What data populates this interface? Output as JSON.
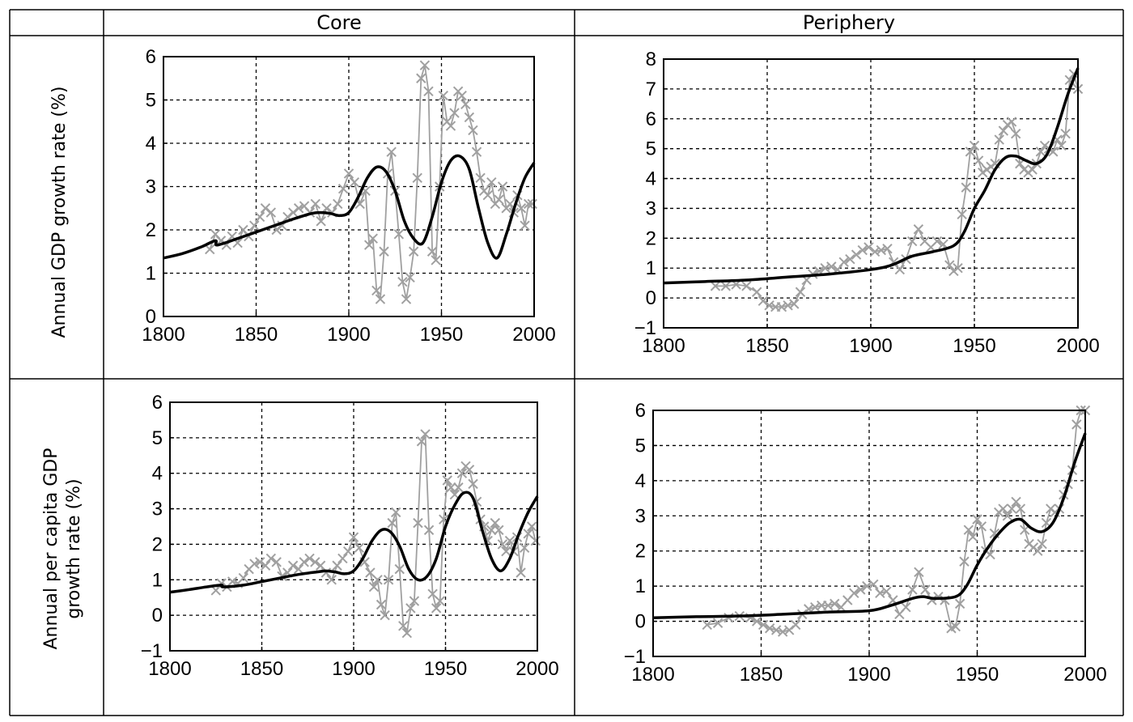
{
  "table": {
    "col_headers": [
      "Core",
      "Periphery"
    ],
    "row_labels": [
      {
        "lines": [
          "Annual GDP growth rate (%)"
        ]
      },
      {
        "lines": [
          "Annual per capita GDP",
          "growth rate (%)"
        ]
      }
    ]
  },
  "colors": {
    "trend": "#000000",
    "observed": "#a0a0a0",
    "grid": "#000000"
  },
  "chart_data": [
    {
      "type": "line",
      "panel": "Core / Annual GDP growth rate",
      "xlim": [
        1800,
        2000
      ],
      "ylim": [
        0,
        6
      ],
      "xticks": [
        1800,
        1850,
        1900,
        1950,
        2000
      ],
      "yticks": [
        0,
        1,
        2,
        3,
        4,
        5,
        6
      ],
      "grid": true,
      "series": [
        {
          "style": "smoothed",
          "x": [
            1800,
            1810,
            1820,
            1828,
            1829,
            1840,
            1850,
            1860,
            1870,
            1880,
            1885,
            1890,
            1895,
            1900,
            1905,
            1910,
            1915,
            1920,
            1925,
            1930,
            1935,
            1940,
            1945,
            1950,
            1955,
            1960,
            1965,
            1970,
            1975,
            1980,
            1985,
            1990,
            1995,
            2000
          ],
          "y": [
            1.35,
            1.45,
            1.6,
            1.75,
            1.65,
            1.8,
            1.95,
            2.1,
            2.25,
            2.38,
            2.4,
            2.38,
            2.33,
            2.4,
            2.75,
            3.2,
            3.45,
            3.35,
            2.9,
            2.2,
            1.8,
            1.7,
            2.3,
            3.1,
            3.6,
            3.7,
            3.4,
            2.5,
            1.7,
            1.35,
            1.9,
            2.6,
            3.2,
            3.55
          ]
        },
        {
          "style": "observed",
          "x": [
            1825,
            1828,
            1831,
            1834,
            1837,
            1840,
            1843,
            1846,
            1849,
            1852,
            1855,
            1858,
            1861,
            1864,
            1867,
            1870,
            1873,
            1876,
            1879,
            1882,
            1885,
            1888,
            1891,
            1894,
            1897,
            1900,
            1903,
            1906,
            1909,
            1911,
            1913,
            1915,
            1917,
            1919,
            1921,
            1923,
            1925,
            1927,
            1929,
            1931,
            1933,
            1935,
            1937,
            1939,
            1941,
            1943,
            1945,
            1947,
            1949,
            1951,
            1953,
            1955,
            1957,
            1959,
            1961,
            1963,
            1965,
            1967,
            1969,
            1971,
            1973,
            1975,
            1977,
            1979,
            1981,
            1983,
            1985,
            1987,
            1989,
            1991,
            1993,
            1995,
            1997,
            1999
          ],
          "y": [
            1.55,
            1.9,
            1.75,
            1.65,
            1.85,
            1.7,
            2.0,
            1.85,
            2.1,
            2.3,
            2.5,
            2.4,
            2.0,
            2.1,
            2.3,
            2.4,
            2.5,
            2.55,
            2.4,
            2.6,
            2.2,
            2.5,
            2.4,
            2.6,
            2.95,
            3.3,
            3.1,
            2.6,
            2.9,
            1.65,
            1.8,
            0.6,
            0.4,
            1.5,
            3.3,
            3.8,
            2.9,
            1.9,
            0.8,
            0.4,
            0.9,
            1.5,
            3.2,
            5.5,
            5.8,
            5.2,
            1.5,
            1.3,
            3.0,
            5.1,
            4.5,
            4.4,
            4.7,
            5.2,
            5.1,
            4.9,
            4.6,
            4.3,
            3.8,
            3.2,
            2.9,
            2.8,
            3.1,
            2.6,
            2.7,
            3.0,
            2.5,
            2.6,
            2.4,
            2.8,
            2.5,
            2.1,
            2.6,
            2.6
          ]
        }
      ]
    },
    {
      "type": "line",
      "panel": "Periphery / Annual GDP growth rate",
      "xlim": [
        1800,
        2000
      ],
      "ylim": [
        -1,
        8
      ],
      "xticks": [
        1800,
        1850,
        1900,
        1950,
        2000
      ],
      "yticks": [
        -1,
        0,
        1,
        2,
        3,
        4,
        5,
        6,
        7,
        8
      ],
      "grid": true,
      "series": [
        {
          "style": "smoothed",
          "x": [
            1800,
            1820,
            1840,
            1860,
            1880,
            1900,
            1910,
            1920,
            1930,
            1940,
            1945,
            1950,
            1955,
            1960,
            1965,
            1970,
            1975,
            1980,
            1985,
            1990,
            1995,
            2000
          ],
          "y": [
            0.5,
            0.55,
            0.6,
            0.7,
            0.8,
            0.95,
            1.1,
            1.4,
            1.55,
            1.75,
            2.2,
            3.0,
            3.6,
            4.3,
            4.7,
            4.75,
            4.6,
            4.5,
            4.8,
            5.7,
            6.8,
            7.7
          ]
        },
        {
          "style": "observed",
          "x": [
            1825,
            1830,
            1835,
            1840,
            1845,
            1848,
            1851,
            1854,
            1857,
            1860,
            1863,
            1866,
            1869,
            1872,
            1875,
            1878,
            1881,
            1884,
            1887,
            1890,
            1893,
            1896,
            1899,
            1902,
            1905,
            1908,
            1911,
            1914,
            1917,
            1920,
            1923,
            1926,
            1929,
            1932,
            1935,
            1938,
            1940,
            1942,
            1944,
            1946,
            1948,
            1950,
            1952,
            1954,
            1956,
            1958,
            1960,
            1962,
            1964,
            1966,
            1968,
            1970,
            1972,
            1974,
            1976,
            1978,
            1980,
            1982,
            1984,
            1986,
            1988,
            1990,
            1992,
            1994,
            1996,
            1998,
            2000
          ],
          "y": [
            0.4,
            0.4,
            0.45,
            0.4,
            0.2,
            -0.1,
            -0.25,
            -0.3,
            -0.3,
            -0.25,
            -0.2,
            0.2,
            0.6,
            0.8,
            0.9,
            1.0,
            1.05,
            0.95,
            1.2,
            1.3,
            1.45,
            1.6,
            1.7,
            1.55,
            1.6,
            1.65,
            1.2,
            0.95,
            1.3,
            1.9,
            2.3,
            1.9,
            1.7,
            1.9,
            1.8,
            1.1,
            0.9,
            1.0,
            2.8,
            3.7,
            4.9,
            5.1,
            4.6,
            4.2,
            4.3,
            4.4,
            4.5,
            5.3,
            5.6,
            5.8,
            5.9,
            5.5,
            4.5,
            4.3,
            4.2,
            4.3,
            4.5,
            4.9,
            5.1,
            5.0,
            4.9,
            5.3,
            5.1,
            5.5,
            7.3,
            7.5,
            7.0
          ]
        }
      ]
    },
    {
      "type": "line",
      "panel": "Core / Annual per capita GDP growth rate",
      "xlim": [
        1800,
        2000
      ],
      "ylim": [
        -1,
        6
      ],
      "xticks": [
        1800,
        1850,
        1900,
        1950,
        2000
      ],
      "yticks": [
        -1,
        0,
        1,
        2,
        3,
        4,
        5,
        6
      ],
      "grid": true,
      "series": [
        {
          "style": "smoothed",
          "x": [
            1800,
            1810,
            1820,
            1828,
            1829,
            1840,
            1850,
            1860,
            1870,
            1880,
            1885,
            1890,
            1895,
            1900,
            1905,
            1910,
            1915,
            1920,
            1925,
            1930,
            1935,
            1940,
            1945,
            1950,
            1955,
            1960,
            1965,
            1970,
            1975,
            1980,
            1985,
            1990,
            1995,
            2000
          ],
          "y": [
            0.65,
            0.72,
            0.8,
            0.85,
            0.8,
            0.85,
            0.95,
            1.05,
            1.15,
            1.22,
            1.25,
            1.22,
            1.17,
            1.25,
            1.6,
            2.1,
            2.4,
            2.35,
            1.95,
            1.3,
            1.0,
            1.1,
            1.6,
            2.5,
            3.1,
            3.45,
            3.3,
            2.4,
            1.6,
            1.25,
            1.6,
            2.3,
            2.9,
            3.35
          ]
        },
        {
          "style": "observed",
          "x": [
            1825,
            1828,
            1831,
            1834,
            1837,
            1840,
            1843,
            1846,
            1849,
            1852,
            1855,
            1858,
            1861,
            1864,
            1867,
            1870,
            1873,
            1876,
            1879,
            1882,
            1885,
            1888,
            1891,
            1894,
            1897,
            1900,
            1903,
            1906,
            1909,
            1911,
            1913,
            1915,
            1917,
            1919,
            1921,
            1923,
            1925,
            1927,
            1929,
            1931,
            1933,
            1935,
            1937,
            1939,
            1941,
            1943,
            1945,
            1947,
            1949,
            1951,
            1953,
            1955,
            1957,
            1959,
            1961,
            1963,
            1965,
            1967,
            1969,
            1971,
            1973,
            1975,
            1977,
            1979,
            1981,
            1983,
            1985,
            1987,
            1989,
            1991,
            1993,
            1995,
            1997,
            1999
          ],
          "y": [
            0.7,
            0.9,
            0.8,
            0.95,
            0.9,
            1.05,
            1.3,
            1.45,
            1.5,
            1.4,
            1.6,
            1.5,
            1.1,
            1.2,
            1.4,
            1.3,
            1.5,
            1.6,
            1.5,
            1.4,
            1.2,
            1.0,
            1.4,
            1.6,
            1.8,
            2.2,
            1.9,
            1.5,
            1.2,
            0.8,
            1.0,
            0.3,
            0.0,
            1.0,
            2.6,
            2.9,
            1.3,
            -0.3,
            -0.5,
            0.2,
            0.4,
            2.6,
            4.9,
            5.1,
            2.4,
            0.6,
            0.2,
            0.4,
            2.7,
            3.8,
            3.6,
            3.4,
            3.6,
            4.0,
            4.2,
            4.1,
            3.7,
            3.2,
            2.7,
            2.5,
            2.1,
            2.4,
            2.6,
            2.4,
            2.0,
            1.8,
            2.1,
            1.8,
            2.2,
            1.2,
            1.9,
            2.3,
            2.5,
            2.1
          ]
        }
      ]
    },
    {
      "type": "line",
      "panel": "Periphery / Annual per capita GDP growth rate",
      "xlim": [
        1800,
        2000
      ],
      "ylim": [
        -1,
        6
      ],
      "xticks": [
        1800,
        1850,
        1900,
        1950,
        2000
      ],
      "yticks": [
        -1,
        0,
        1,
        2,
        3,
        4,
        5,
        6
      ],
      "grid": true,
      "series": [
        {
          "style": "smoothed",
          "x": [
            1800,
            1820,
            1840,
            1860,
            1880,
            1900,
            1910,
            1920,
            1925,
            1930,
            1940,
            1945,
            1950,
            1955,
            1960,
            1965,
            1970,
            1975,
            1980,
            1985,
            1990,
            1995,
            2000
          ],
          "y": [
            0.1,
            0.13,
            0.15,
            0.2,
            0.26,
            0.3,
            0.45,
            0.65,
            0.7,
            0.65,
            0.7,
            1.0,
            1.6,
            2.1,
            2.5,
            2.8,
            2.9,
            2.65,
            2.55,
            2.8,
            3.5,
            4.5,
            5.35
          ]
        },
        {
          "style": "observed",
          "x": [
            1825,
            1830,
            1835,
            1840,
            1845,
            1848,
            1851,
            1854,
            1857,
            1860,
            1863,
            1866,
            1869,
            1872,
            1875,
            1878,
            1881,
            1884,
            1887,
            1890,
            1893,
            1896,
            1899,
            1902,
            1905,
            1908,
            1911,
            1914,
            1917,
            1920,
            1923,
            1926,
            1929,
            1932,
            1935,
            1938,
            1940,
            1942,
            1944,
            1946,
            1948,
            1950,
            1952,
            1954,
            1956,
            1958,
            1960,
            1962,
            1964,
            1966,
            1968,
            1970,
            1972,
            1974,
            1976,
            1978,
            1980,
            1982,
            1984,
            1986,
            1988,
            1990,
            1992,
            1994,
            1996,
            1998,
            2000
          ],
          "y": [
            -0.1,
            -0.05,
            0.1,
            0.15,
            0.1,
            0.0,
            -0.1,
            -0.2,
            -0.25,
            -0.3,
            -0.25,
            -0.1,
            0.2,
            0.35,
            0.4,
            0.45,
            0.45,
            0.5,
            0.4,
            0.6,
            0.8,
            0.9,
            1.0,
            1.05,
            0.8,
            0.85,
            0.6,
            0.2,
            0.4,
            0.9,
            1.4,
            0.9,
            0.6,
            0.7,
            0.6,
            -0.2,
            -0.15,
            0.5,
            1.7,
            2.6,
            2.4,
            2.9,
            2.7,
            2.0,
            1.9,
            2.5,
            3.1,
            3.2,
            3.0,
            3.2,
            3.4,
            3.2,
            2.6,
            2.2,
            2.1,
            2.0,
            2.2,
            2.8,
            3.2,
            3.1,
            3.2,
            3.6,
            3.9,
            4.3,
            5.6,
            6.0,
            6.0
          ]
        }
      ]
    }
  ]
}
